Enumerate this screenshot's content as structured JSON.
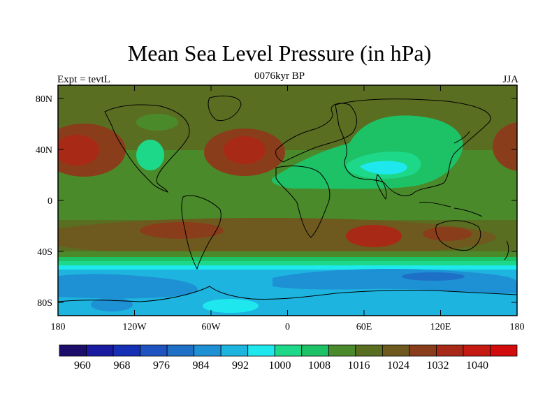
{
  "title": "Mean Sea Level Pressure (in hPa)",
  "subtitle_left": "Expt = tevtL",
  "subtitle_center": "0076kyr BP",
  "subtitle_right": "JJA",
  "lat_ticks": [
    "80N",
    "40N",
    "0",
    "40S",
    "80S"
  ],
  "lon_ticks": [
    "180",
    "120W",
    "60W",
    "0",
    "60E",
    "120E",
    "180"
  ],
  "colorbar": {
    "colors": [
      "#1c0d6b",
      "#1a1aa0",
      "#1530b4",
      "#1f53c1",
      "#1e6fc6",
      "#1e90d4",
      "#1eb4e0",
      "#1ee8ee",
      "#1ed88a",
      "#1ec266",
      "#4a8a2a",
      "#5a6e22",
      "#6e5a1e",
      "#8a3d1a",
      "#a82a16",
      "#c41a12",
      "#d20c0c"
    ],
    "labels": [
      "960",
      "968",
      "976",
      "984",
      "992",
      "1000",
      "1008",
      "1016",
      "1024",
      "1032",
      "1040"
    ]
  },
  "chart_data": {
    "type": "heatmap",
    "title": "Mean Sea Level Pressure (in hPa)",
    "xlim": [
      -180,
      180
    ],
    "ylim": [
      -90,
      90
    ],
    "levels_hPa": [
      956,
      960,
      964,
      968,
      972,
      976,
      980,
      984,
      988,
      992,
      996,
      1000,
      1004,
      1008,
      1012,
      1016,
      1020,
      1024,
      1028,
      1032,
      1036,
      1040,
      1044
    ],
    "highs": [
      {
        "lon": -165,
        "lat": 40,
        "value": 1028
      },
      {
        "lon": -35,
        "lat": 35,
        "value": 1028
      },
      {
        "lon": -110,
        "lat": -30,
        "value": 1020
      },
      {
        "lon": -15,
        "lat": -28,
        "value": 1020
      },
      {
        "lon": 65,
        "lat": -30,
        "value": 1024
      },
      {
        "lon": 130,
        "lat": -30,
        "value": 1020
      }
    ],
    "lows": [
      {
        "lon": 75,
        "lat": 35,
        "value": 1000
      },
      {
        "lon": 60,
        "lat": 55,
        "value": 1004
      },
      {
        "lon": -120,
        "lat": -72,
        "value": 984
      },
      {
        "lon": 90,
        "lat": -65,
        "value": 976
      }
    ]
  }
}
